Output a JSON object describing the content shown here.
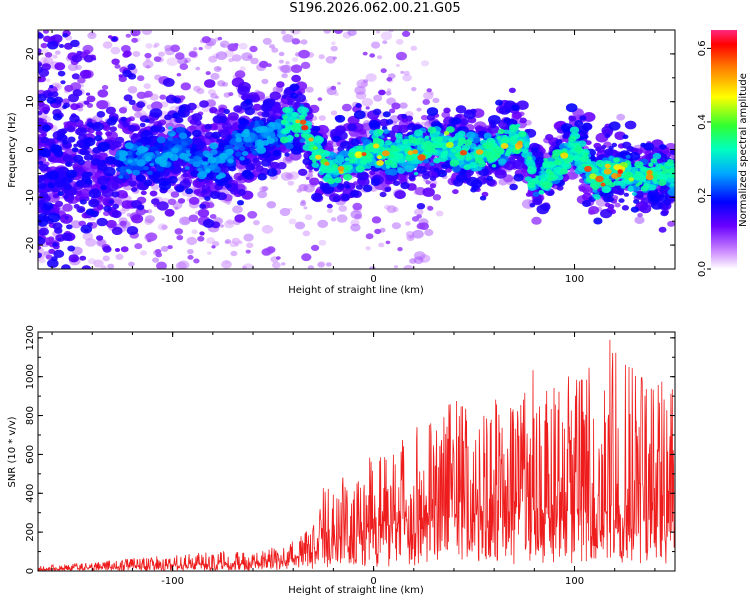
{
  "figure": {
    "title": "S196.2026.062.00.21.G05"
  },
  "chart_data": [
    {
      "type": "heatmap",
      "xlabel": "Height of straight line (km)",
      "ylabel": "Frequency (Hz)",
      "xlim": [
        -167,
        150
      ],
      "ylim": [
        -25,
        25
      ],
      "xticks": [
        -100,
        0,
        100
      ],
      "yticks": [
        -20,
        -10,
        0,
        10,
        20
      ],
      "colorbar": {
        "label": "Normalized spectral amplitude",
        "range": [
          0.0,
          0.65
        ],
        "ticks": [
          0.0,
          0.2,
          0.4,
          0.6
        ]
      },
      "ridge": {
        "description": "frequency of strongest returns vs height",
        "x": [
          -167,
          -150,
          -130,
          -110,
          -95,
          -85,
          -75,
          -62,
          -50,
          -42,
          -35,
          -30,
          -25,
          -20,
          -10,
          0,
          10,
          20,
          30,
          40,
          50,
          60,
          70,
          75,
          80,
          90,
          100,
          110,
          120,
          130,
          140,
          150
        ],
        "y": [
          -5,
          -4,
          -3,
          -2,
          1,
          -4,
          -2,
          2,
          3,
          5,
          6,
          1,
          -3,
          -4,
          -2,
          0,
          -1,
          -1,
          1,
          0,
          -1,
          0,
          2,
          2,
          -8,
          -4,
          1,
          -6,
          -4,
          -6,
          -5,
          -6
        ]
      }
    },
    {
      "type": "line",
      "xlabel": "Height of straight line (km)",
      "ylabel": "SNR (10 * v/v)",
      "xlim": [
        -167,
        150
      ],
      "ylim": [
        0,
        1230
      ],
      "xticks": [
        -100,
        0,
        100
      ],
      "yticks": [
        0,
        200,
        400,
        600,
        800,
        1000,
        1200
      ],
      "series": [
        {
          "name": "SNR",
          "color": "#ee1c1c",
          "envelope_x": [
            -167,
            -140,
            -110,
            -80,
            -60,
            -45,
            -35,
            -30,
            -26,
            -20,
            0,
            20,
            40,
            60,
            80,
            100,
            120,
            130,
            150
          ],
          "envelope_base": [
            10,
            15,
            25,
            35,
            40,
            50,
            80,
            120,
            150,
            170,
            220,
            260,
            290,
            300,
            310,
            310,
            300,
            270,
            250
          ],
          "envelope_peak": [
            30,
            45,
            75,
            100,
            110,
            130,
            200,
            280,
            430,
            460,
            600,
            760,
            880,
            900,
            1050,
            1000,
            1230,
            1050,
            940
          ]
        }
      ]
    }
  ]
}
